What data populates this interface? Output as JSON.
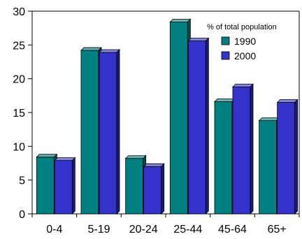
{
  "chart_data": {
    "type": "bar",
    "style": "3d-clustered",
    "title": "",
    "xlabel": "",
    "ylabel": "",
    "categories": [
      "0-4",
      "5-19",
      "20-24",
      "25-44",
      "45-64",
      "65+"
    ],
    "series": [
      {
        "name": "1990",
        "values": [
          8.4,
          24.2,
          8.2,
          28.4,
          16.6,
          13.8
        ],
        "color": "#008080",
        "top_color": "#66b2b2",
        "side_color": "#004d4d"
      },
      {
        "name": "2000",
        "values": [
          7.9,
          23.9,
          7.0,
          25.6,
          18.8,
          16.5
        ],
        "color": "#3333cc",
        "top_color": "#8585e0",
        "side_color": "#1a1a80"
      }
    ],
    "ylim": [
      0,
      30
    ],
    "yticks": [
      0,
      5,
      10,
      15,
      20,
      25,
      30
    ],
    "legend": {
      "title": "% of total population",
      "position": "top-right"
    },
    "grid": false
  }
}
